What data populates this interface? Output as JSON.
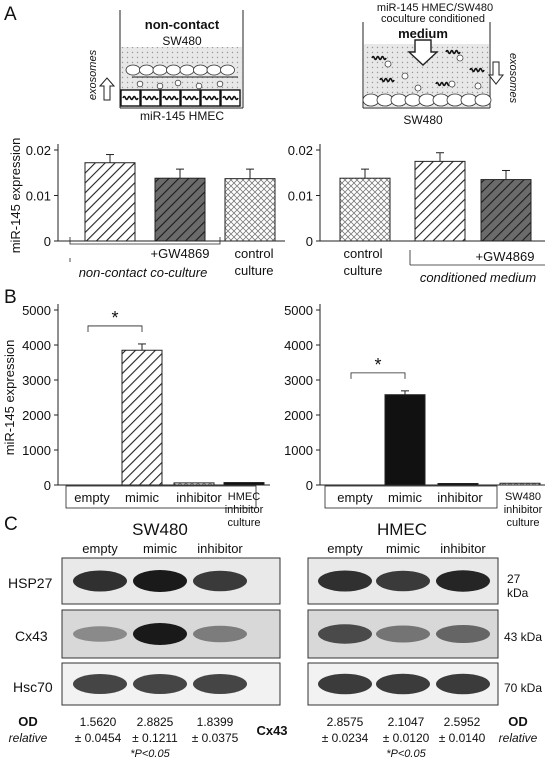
{
  "panel_labels": [
    "A",
    "B",
    "C"
  ],
  "panelA": {
    "left_schematic": {
      "title": "non-contact",
      "top_cell": "SW480",
      "bottom_cell": "miR-145 HMEC",
      "side_label": "exosomes"
    },
    "right_schematic": {
      "title_line1": "miR-145 HMEC/SW480",
      "title_line2": "coculture conditioned",
      "title_line3": "medium",
      "bottom_cell": "SW480",
      "side_label": "exosomes"
    },
    "left_group_label_gw": "+GW4869",
    "left_group_label": "non-contact co-culture",
    "left_control_line1": "control",
    "left_control_line2": "culture",
    "right_control_line1": "control",
    "right_control_line2": "culture",
    "right_group_label_gw": "+GW4869",
    "right_group_label": "conditioned medium"
  },
  "chart_data": [
    {
      "type": "bar",
      "panel": "A-left",
      "ylabel": "miR-145 expression",
      "ylim": [
        0,
        0.02
      ],
      "yticks": [
        "0",
        "0.01",
        "0.02"
      ],
      "categories": [
        "non-contact co-culture",
        "non-contact co-culture +GW4869",
        "control culture"
      ],
      "values": [
        0.0172,
        0.0138,
        0.0137
      ],
      "errors": [
        0.0018,
        0.002,
        0.0021
      ],
      "patterns": [
        "hatch-light",
        "hatch-dark",
        "check"
      ]
    },
    {
      "type": "bar",
      "panel": "A-right",
      "ylim": [
        0,
        0.02
      ],
      "yticks": [
        "0",
        "0.01",
        "0.02"
      ],
      "categories": [
        "control culture",
        "conditioned medium",
        "conditioned medium +GW4869"
      ],
      "values": [
        0.0138,
        0.0175,
        0.0135
      ],
      "errors": [
        0.002,
        0.0019,
        0.002
      ],
      "patterns": [
        "check",
        "hatch-light",
        "hatch-dark"
      ]
    },
    {
      "type": "bar",
      "panel": "B-left",
      "ylabel": "miR-145 expression",
      "ylim": [
        0,
        5000
      ],
      "yticks": [
        "0",
        "1000",
        "2000",
        "3000",
        "4000",
        "5000"
      ],
      "categories": [
        "empty",
        "mimic",
        "inhibitor",
        "HMEC culture"
      ],
      "tick_labels": [
        "empty",
        "mimic",
        "inhibitor"
      ],
      "extra_label_line1": "HMEC",
      "extra_label_line2": "inhibitor",
      "extra_label_line3": "culture",
      "values": [
        0,
        3850,
        60,
        70
      ],
      "errors": [
        0,
        180,
        0,
        0
      ],
      "patterns": [
        "none",
        "hatch-light",
        "check",
        "solid"
      ],
      "significance": "*"
    },
    {
      "type": "bar",
      "panel": "B-right",
      "ylim": [
        0,
        5000
      ],
      "yticks": [
        "0",
        "1000",
        "2000",
        "3000",
        "4000",
        "5000"
      ],
      "categories": [
        "empty",
        "mimic",
        "inhibitor",
        "SW480 culture"
      ],
      "tick_labels": [
        "empty",
        "mimic",
        "inhibitor"
      ],
      "extra_label_line1": "SW480",
      "extra_label_line2": "inhibitor",
      "extra_label_line3": "culture",
      "values": [
        0,
        2580,
        30,
        50
      ],
      "errors": [
        0,
        110,
        0,
        0
      ],
      "patterns": [
        "none",
        "solid",
        "solid",
        "check"
      ],
      "significance": "*"
    }
  ],
  "panelC": {
    "left_title": "SW480",
    "right_title": "HMEC",
    "lanes": [
      "empty",
      "mimic",
      "inhibitor"
    ],
    "proteins": [
      "HSP27",
      "Cx43",
      "Hsc70"
    ],
    "sizes": [
      "27",
      "kDa",
      "43 kDa",
      "70 kDa"
    ],
    "od_left": [
      "1.5620",
      "2.8825",
      "1.8399"
    ],
    "od_left_sd": [
      "± 0.0454",
      "± 0.1211",
      "± 0.0375"
    ],
    "od_right": [
      "2.8575",
      "2.1047",
      "2.5952"
    ],
    "od_right_sd": [
      "± 0.0234",
      "± 0.0120",
      "± 0.0140"
    ],
    "od_label": "OD",
    "relative_label": "relative",
    "center_label": "Cx43",
    "pvalue": "*P<0.05"
  },
  "colors": {
    "dark_bar": "#666666",
    "solid_bar": "#111111",
    "medium_fill": "#dcdcdc"
  }
}
